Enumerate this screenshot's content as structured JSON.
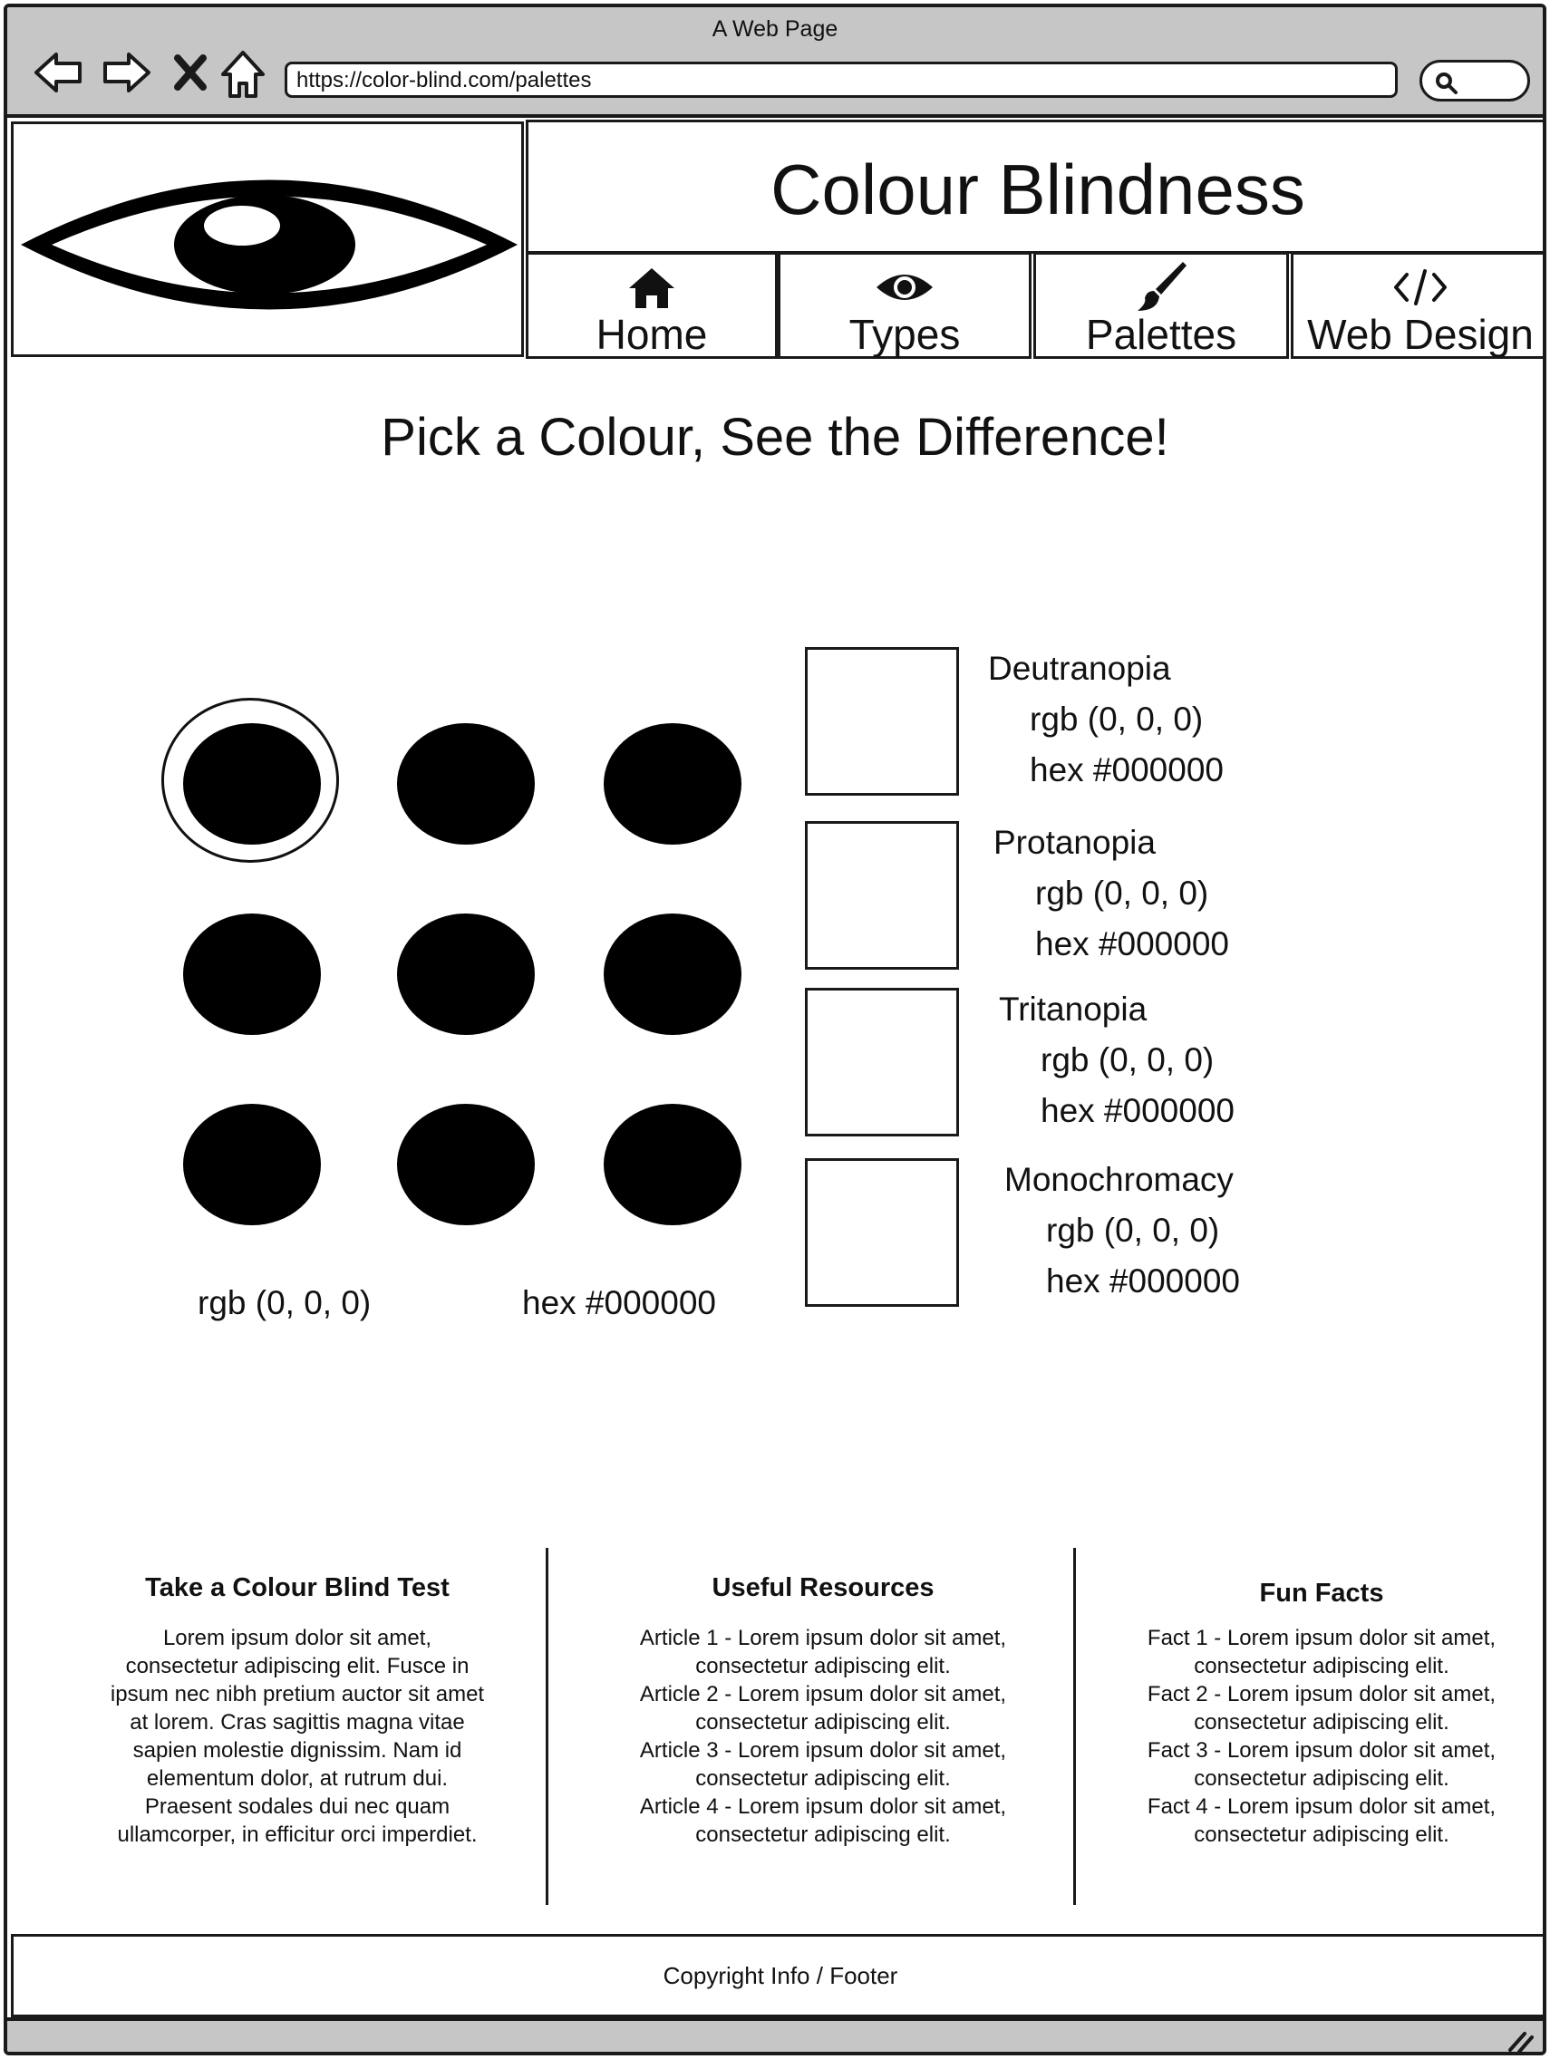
{
  "browser": {
    "window_title": "A Web Page",
    "url": "https://color-blind.com/palettes"
  },
  "header": {
    "site_title": "Colour Blindness",
    "nav": [
      {
        "label": "Home",
        "icon": "home-icon"
      },
      {
        "label": "Types",
        "icon": "eye-icon"
      },
      {
        "label": "Palettes",
        "icon": "paintbrush-icon"
      },
      {
        "label": "Web Design",
        "icon": "code-icon"
      }
    ]
  },
  "main": {
    "title": "Pick a Colour, See the Difference!",
    "selected_colour": {
      "rgb": "rgb (0, 0, 0)",
      "hex": "hex #000000"
    },
    "palette_colours": [
      "#000000",
      "#000000",
      "#000000",
      "#000000",
      "#000000",
      "#000000",
      "#000000",
      "#000000",
      "#000000"
    ],
    "selected_index": 0,
    "simulations": [
      {
        "name": "Deutranopia",
        "rgb": "rgb (0, 0, 0)",
        "hex": "hex #000000"
      },
      {
        "name": "Protanopia",
        "rgb": "rgb (0, 0, 0)",
        "hex": "hex #000000"
      },
      {
        "name": "Tritanopia",
        "rgb": "rgb (0, 0, 0)",
        "hex": "hex #000000"
      },
      {
        "name": "Monochromacy",
        "rgb": "rgb (0, 0, 0)",
        "hex": "hex #000000"
      }
    ]
  },
  "info": {
    "test": {
      "title": "Take a Colour Blind Test",
      "lines": [
        "Lorem ipsum dolor sit amet,",
        "consectetur adipiscing elit. Fusce in",
        "ipsum nec nibh pretium auctor sit amet",
        "at lorem. Cras sagittis magna vitae",
        "sapien molestie dignissim. Nam id",
        "elementum dolor, at rutrum dui.",
        "Praesent sodales dui nec quam",
        "ullamcorper, in efficitur orci imperdiet."
      ]
    },
    "resources": {
      "title": "Useful Resources",
      "lines": [
        "Article 1 - Lorem ipsum dolor sit amet,",
        "consectetur adipiscing elit.",
        "Article 2 - Lorem ipsum dolor sit amet,",
        "consectetur adipiscing elit.",
        "Article 3 - Lorem ipsum dolor sit amet,",
        "consectetur adipiscing elit.",
        "Article 4 - Lorem ipsum dolor sit amet,",
        "consectetur adipiscing elit."
      ]
    },
    "facts": {
      "title": "Fun Facts",
      "lines": [
        "Fact 1 - Lorem ipsum dolor sit amet,",
        "consectetur adipiscing elit.",
        "Fact 2 - Lorem ipsum dolor sit amet,",
        "consectetur adipiscing elit.",
        "Fact 3 - Lorem ipsum dolor sit amet,",
        "consectetur adipiscing elit.",
        "Fact 4 - Lorem ipsum dolor sit amet,",
        "consectetur adipiscing elit."
      ]
    }
  },
  "footer": {
    "text": "Copyright Info / Footer"
  },
  "colors": {
    "chrome": "#c6c6c6",
    "ink": "#1a1a1a"
  }
}
